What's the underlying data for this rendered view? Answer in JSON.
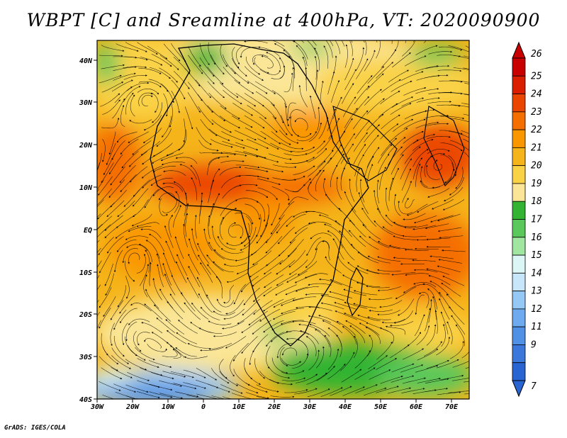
{
  "title": "WBPT [C] and Sreamline at 400hPa, VT: 2020090900",
  "credit": "GrADS: IGES/COLA",
  "lat_labels": [
    "40N",
    "30N",
    "20N",
    "10N",
    "EQ",
    "10S",
    "20S",
    "30S",
    "40S"
  ],
  "lon_labels": [
    "30W",
    "20W",
    "10W",
    "0",
    "10E",
    "20E",
    "30E",
    "40E",
    "50E",
    "60E",
    "70E"
  ],
  "colorbar": {
    "labels": [
      "26",
      "25",
      "24",
      "23",
      "22",
      "21",
      "20",
      "19",
      "18",
      "17",
      "16",
      "15",
      "14",
      "13",
      "12",
      "11",
      "9",
      "7"
    ],
    "colors": [
      "#c80000",
      "#dc1e00",
      "#eb4600",
      "#f56e00",
      "#fa9600",
      "#f5b419",
      "#fad246",
      "#fae696",
      "#32b432",
      "#5ac85a",
      "#a0e6a0",
      "#dcf5f5",
      "#c8e6fa",
      "#96c8f5",
      "#6eaaf0",
      "#5091e6",
      "#3c78dc",
      "#2864d2"
    ]
  }
}
